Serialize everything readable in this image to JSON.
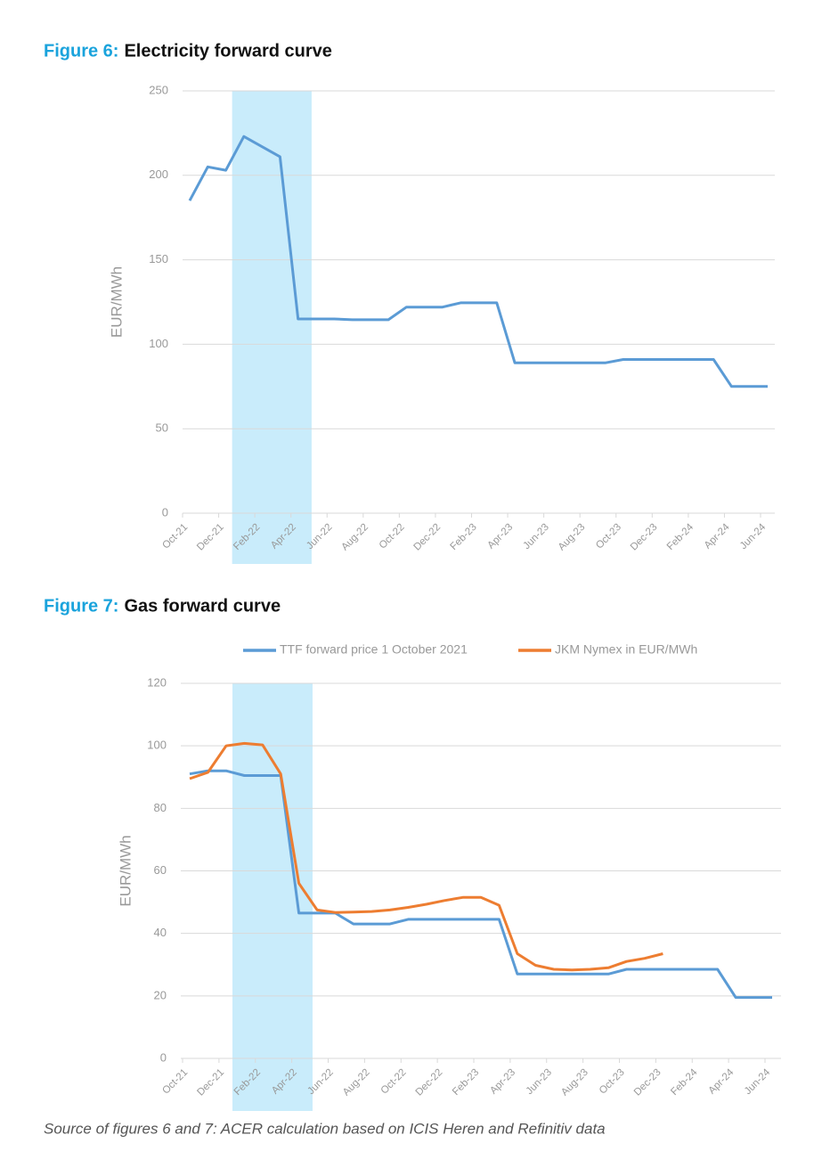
{
  "chart_data": [
    {
      "type": "line",
      "figure_label": "Figure 6:",
      "title": "Electricity forward curve",
      "y_label": "EUR/MWh",
      "categories": [
        "Oct-21",
        null,
        "Dec-21",
        null,
        "Feb-22",
        null,
        "Apr-22",
        null,
        "Jun-22",
        null,
        "Aug-22",
        null,
        "Oct-22",
        null,
        "Dec-22",
        null,
        "Feb-23",
        null,
        "Apr-23",
        null,
        "Jun-23",
        null,
        "Aug-23",
        null,
        "Oct-23",
        null,
        "Dec-23",
        null,
        "Feb-24",
        null,
        "Apr-24",
        null,
        "Jun-24"
      ],
      "values": [
        185,
        205,
        203,
        223,
        217,
        211,
        115,
        115,
        115,
        114.5,
        114.5,
        114.5,
        122,
        122,
        122,
        124.5,
        124.5,
        124.5,
        89,
        89,
        89,
        89,
        89,
        89,
        91,
        91,
        91,
        91,
        91,
        91,
        75,
        75,
        75
      ],
      "color": "#5b9bd5",
      "ylim": [
        0,
        250
      ],
      "yticks": [
        0,
        50,
        100,
        150,
        200,
        250
      ],
      "grid": true
    },
    {
      "type": "line",
      "figure_label": "Figure 7:",
      "title": "Gas forward curve",
      "y_label": "EUR/MWh",
      "categories": [
        "Oct-21",
        null,
        "Dec-21",
        null,
        "Feb-22",
        null,
        "Apr-22",
        null,
        "Jun-22",
        null,
        "Aug-22",
        null,
        "Oct-22",
        null,
        "Dec-22",
        null,
        "Feb-23",
        null,
        "Apr-23",
        null,
        "Jun-23",
        null,
        "Aug-23",
        null,
        "Oct-23",
        null,
        "Dec-23",
        null,
        "Feb-24",
        null,
        "Apr-24",
        null,
        "Jun-24"
      ],
      "series": [
        {
          "name": "TTF forward price 1 October 2021",
          "color": "#5b9bd5",
          "values": [
            91,
            92,
            92,
            90.5,
            90.5,
            90.5,
            46.5,
            46.5,
            46.5,
            43,
            43,
            43,
            44.5,
            44.5,
            44.5,
            44.5,
            44.5,
            44.5,
            27,
            27,
            27,
            27,
            27,
            27,
            28.5,
            28.5,
            28.5,
            28.5,
            28.5,
            28.5,
            19.5,
            19.5,
            19.5
          ]
        },
        {
          "name": "JKM Nymex in EUR/MWh",
          "color": "#ed7d31",
          "values": [
            89.5,
            91.5,
            100,
            100.8,
            100.3,
            91,
            56,
            47.5,
            46.7,
            46.8,
            47,
            47.5,
            48.3,
            49.3,
            50.5,
            51.5,
            51.5,
            49,
            33.5,
            29.8,
            28.5,
            28.3,
            28.5,
            29,
            31,
            32,
            33.5,
            null,
            null,
            null,
            null,
            null,
            null
          ]
        }
      ],
      "ylim": [
        0,
        120
      ],
      "yticks": [
        0,
        20,
        40,
        60,
        80,
        100,
        120
      ],
      "grid": true,
      "legend": "top"
    }
  ],
  "source": "Source of figures 6 and 7: ACER calculation based on ICIS Heren and Refinitiv data"
}
